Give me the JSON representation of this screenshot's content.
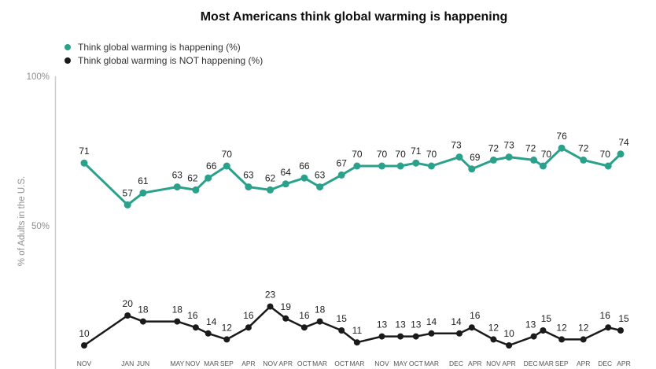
{
  "title": "Most Americans think global warming is happening",
  "chart_data": {
    "type": "line",
    "title": "Most Americans think global warming is happening",
    "xlabel": "",
    "ylabel": "% of Adults in the U.S.",
    "ylim": [
      0,
      100
    ],
    "grid": false,
    "legend_position": "top-left",
    "y_ticks": [
      {
        "value": 100,
        "label": "100%"
      },
      {
        "value": 50,
        "label": "50%"
      }
    ],
    "categories": [
      "NOV",
      "JAN",
      "JUN",
      "MAY",
      "NOV",
      "MAR",
      "SEP",
      "APR",
      "NOV",
      "APR",
      "OCT",
      "MAR",
      "OCT",
      "MAR",
      "NOV",
      "MAY",
      "OCT",
      "MAR",
      "DEC",
      "APR",
      "NOV",
      "APR",
      "DEC",
      "MAR",
      "SEP",
      "APR",
      "DEC",
      "APR"
    ],
    "x_month_offsets": [
      0,
      14,
      19,
      30,
      36,
      40,
      46,
      53,
      60,
      65,
      71,
      76,
      83,
      88,
      96,
      102,
      107,
      112,
      121,
      125,
      132,
      137,
      145,
      148,
      154,
      161,
      169,
      173
    ],
    "series": [
      {
        "name": "Think global warming is happening (%)",
        "color": "#2aa18b",
        "values": [
          71,
          57,
          61,
          63,
          62,
          66,
          70,
          63,
          62,
          64,
          66,
          63,
          67,
          70,
          70,
          70,
          71,
          70,
          73,
          69,
          72,
          73,
          72,
          70,
          76,
          72,
          70,
          74
        ]
      },
      {
        "name": "Think global warming is NOT happening (%)",
        "color": "#1a1a1a",
        "values": [
          10,
          20,
          18,
          18,
          16,
          14,
          12,
          16,
          23,
          19,
          16,
          18,
          15,
          11,
          13,
          13,
          13,
          14,
          14,
          16,
          12,
          10,
          13,
          15,
          12,
          12,
          16,
          15
        ]
      }
    ],
    "axis_color": "#cccccc",
    "tick_label_color": "#8f8f8f",
    "x_label_color": "#555555",
    "value_label_color": "#222222"
  }
}
